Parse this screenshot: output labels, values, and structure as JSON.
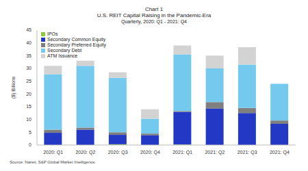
{
  "chart_data": {
    "type": "bar",
    "header": "Chart 1",
    "title": "U.S. REIT Capital Raising in the Pandemic-Era",
    "subtitle": "Quarterly, 2020: Q1 - 2021: Q4",
    "y_label": "($) Billions",
    "source": "Source: Nareit, S&P Global Market Intelligence.",
    "categories": [
      "2020: Q1",
      "2020: Q2",
      "2020: Q3",
      "2020: Q4",
      "2021: Q1",
      "2021: Q2",
      "2021: Q3",
      "2021: Q4"
    ],
    "series": [
      {
        "name": "IPOs",
        "color": "#8dc63f",
        "values": [
          0,
          0,
          0.3,
          0,
          0.2,
          0,
          0,
          0
        ]
      },
      {
        "name": "Secondary Common Equity",
        "color": "#2438c6",
        "values": [
          4.8,
          6.0,
          3.7,
          3.8,
          12.8,
          14.3,
          12.5,
          8.3
        ]
      },
      {
        "name": "Secondary Preferred Equity",
        "color": "#7f7f7f",
        "values": [
          1.2,
          0.8,
          1.0,
          0.7,
          0.3,
          2.5,
          2.0,
          1.3
        ]
      },
      {
        "name": "Secondary Debt",
        "color": "#74c9ee",
        "values": [
          21.7,
          24.2,
          21.3,
          5.8,
          22.2,
          13.2,
          17.0,
          14.4
        ]
      },
      {
        "name": "ATM Issuance",
        "color": "#d3d3d3",
        "values": [
          3.3,
          2.0,
          2.2,
          3.7,
          3.5,
          5.0,
          6.8,
          0
        ]
      }
    ],
    "ylim": [
      0,
      45
    ],
    "yticks": [
      0,
      5,
      10,
      15,
      20,
      25,
      30,
      35,
      40,
      45
    ],
    "stacked": true,
    "grid": false,
    "legend": "upper left"
  }
}
